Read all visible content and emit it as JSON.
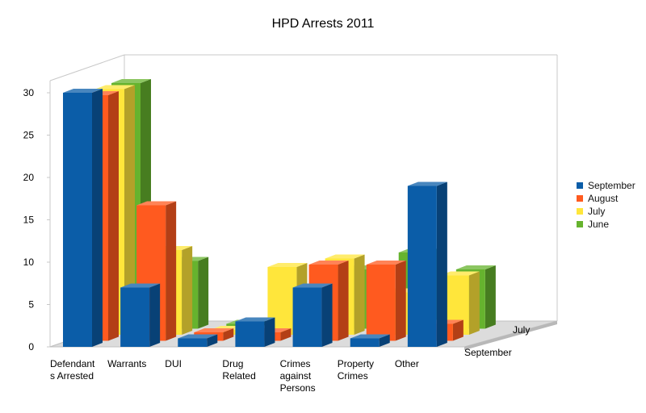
{
  "chart_data": {
    "type": "bar",
    "title": "HPD Arrests 2011",
    "xlabel": "",
    "ylabel": "",
    "ylim": [
      0,
      30
    ],
    "yticks": [
      "0",
      "5",
      "10",
      "15",
      "20",
      "25",
      "30"
    ],
    "categories": [
      "Defendants Arrested",
      "Warrants",
      "DUI",
      "Drug Related",
      "Crimes against Persons",
      "Property Crimes",
      "Other"
    ],
    "category_label_lines": [
      [
        "Defendant",
        "s Arrested"
      ],
      [
        "Warrants"
      ],
      [
        "DUI"
      ],
      [
        "Drug",
        "Related"
      ],
      [
        "Crimes",
        "against",
        "Persons"
      ],
      [
        "Property",
        "Crimes"
      ],
      [
        "Other"
      ]
    ],
    "series": [
      {
        "name": "September",
        "color": "#0b5da8",
        "values": [
          30,
          7,
          1,
          3,
          7,
          1,
          19
        ]
      },
      {
        "name": "August",
        "color": "#ff5a1f",
        "values": [
          29,
          16,
          1,
          1,
          9,
          9,
          2
        ]
      },
      {
        "name": "July",
        "color": "#ffe63b",
        "values": [
          29,
          10,
          0,
          8,
          9,
          5,
          7
        ]
      },
      {
        "name": "June",
        "color": "#66b32e",
        "values": [
          29,
          8,
          0,
          3,
          7,
          9,
          7
        ]
      }
    ],
    "depth_axis_labels": [
      "September",
      "July"
    ],
    "grid": false,
    "legend_position": "right",
    "style": "3d-grouped-column"
  },
  "legend": [
    {
      "label": "September",
      "color": "#0b5da8"
    },
    {
      "label": "August",
      "color": "#ff5a1f"
    },
    {
      "label": "July",
      "color": "#ffe63b"
    },
    {
      "label": "June",
      "color": "#66b32e"
    }
  ]
}
